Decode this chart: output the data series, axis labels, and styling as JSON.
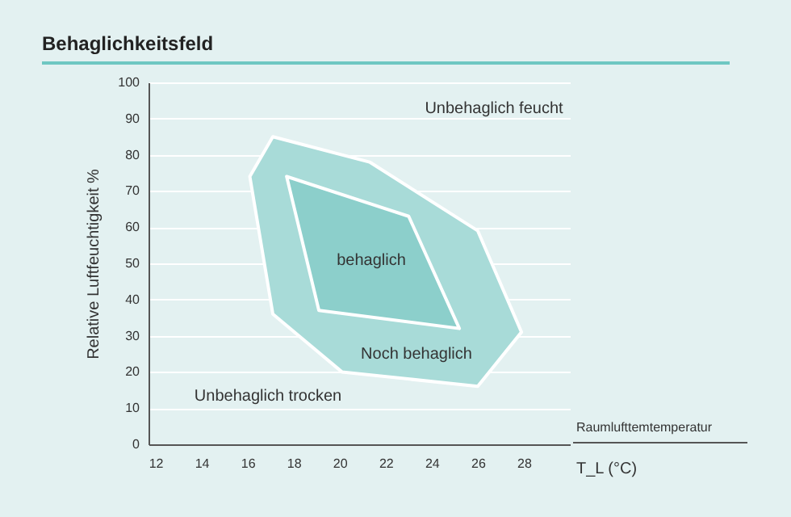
{
  "chart_data": {
    "type": "area",
    "title": "Behaglichkeitsfeld",
    "xlabel": "Raumlufttemtemperatur",
    "x2label": "T_L (°C)",
    "ylabel": "Relative Luftfeuchtigkeit %",
    "series": [
      {
        "color": "#a8dbd8",
        "x": [
          17.1,
          21.3,
          26.0,
          27.9,
          26.0,
          20.1,
          17.1,
          16.1
        ],
        "values": [
          85,
          78,
          59,
          31,
          16,
          20,
          36,
          74
        ]
      },
      {
        "color": "#8ccfcb",
        "x": [
          17.7,
          23.0,
          25.2,
          19.1
        ],
        "values": [
          74,
          63,
          32,
          37
        ]
      }
    ],
    "annotations": [
      "Unbehaglich feucht",
      "behaglich",
      "Noch behaglich",
      "Unbehaglich trocken"
    ],
    "xlim": [
      11.7,
      30
    ],
    "xticks": [
      12,
      14,
      16,
      18,
      20,
      22,
      24,
      26,
      28
    ],
    "ylim": [
      0,
      100
    ],
    "yticks": [
      0,
      10,
      20,
      30,
      40,
      50,
      60,
      70,
      80,
      90,
      100
    ],
    "grid": "y"
  }
}
